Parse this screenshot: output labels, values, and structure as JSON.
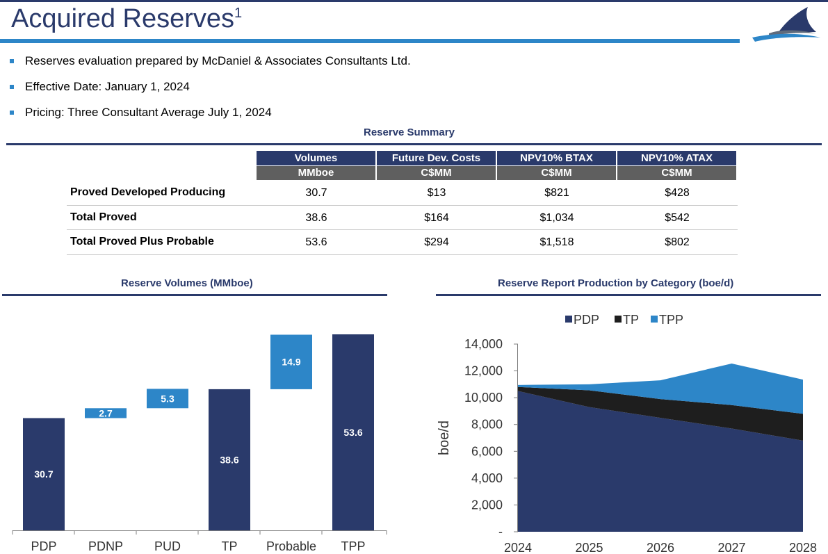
{
  "page": {
    "title": "Acquired Reserves",
    "title_sup": "1",
    "bullets": [
      "Reserves evaluation prepared by McDaniel & Associates Consultants Ltd.",
      "Effective Date: January 1, 2024",
      "Pricing: Three Consultant Average July 1, 2024"
    ]
  },
  "colors": {
    "navy": "#2a3a6b",
    "blue": "#2d86c8",
    "black": "#1e1e1e",
    "gray": "#5f5f5f"
  },
  "icons": {
    "logo": "shark-fin-wave-logo-icon",
    "bullet": "square-bullet-icon"
  },
  "table": {
    "title": "Reserve Summary",
    "columns": [
      {
        "header": "Volumes",
        "unit": "MMboe"
      },
      {
        "header": "Future Dev. Costs",
        "unit": "C$MM"
      },
      {
        "header": "NPV10% BTAX",
        "unit": "C$MM"
      },
      {
        "header": "NPV10% ATAX",
        "unit": "C$MM"
      }
    ],
    "rows": [
      {
        "label": "Proved Developed Producing",
        "values": [
          "30.7",
          "$13",
          "$821",
          "$428"
        ]
      },
      {
        "label": "Total Proved",
        "values": [
          "38.6",
          "$164",
          "$1,034",
          "$542"
        ]
      },
      {
        "label": "Total Proved Plus Probable",
        "values": [
          "53.6",
          "$294",
          "$1,518",
          "$802"
        ]
      }
    ]
  },
  "chart_data": [
    {
      "type": "bar",
      "subtype": "waterfall",
      "title": "Reserve Volumes (MMboe)",
      "categories": [
        "PDP",
        "PDNP",
        "PUD",
        "TP",
        "Probable",
        "TPP"
      ],
      "bars": [
        {
          "category": "PDP",
          "base": 0,
          "value": 30.7,
          "label": "30.7",
          "kind": "total"
        },
        {
          "category": "PDNP",
          "base": 30.7,
          "value": 2.7,
          "label": "2.7",
          "kind": "increment"
        },
        {
          "category": "PUD",
          "base": 33.4,
          "value": 5.3,
          "label": "5.3",
          "kind": "increment"
        },
        {
          "category": "TP",
          "base": 0,
          "value": 38.6,
          "label": "38.6",
          "kind": "total"
        },
        {
          "category": "Probable",
          "base": 38.6,
          "value": 14.9,
          "label": "14.9",
          "kind": "increment"
        },
        {
          "category": "TPP",
          "base": 0,
          "value": 53.6,
          "label": "53.6",
          "kind": "total"
        }
      ],
      "ylim": [
        0,
        53.6
      ],
      "grid": false,
      "legend": "none"
    },
    {
      "type": "area",
      "stacked": true,
      "title": "Reserve Report Production by Category (boe/d)",
      "x": [
        "2024",
        "2025",
        "2026",
        "2027",
        "2028"
      ],
      "series": [
        {
          "name": "PDP",
          "values": [
            10500,
            9300,
            8500,
            7700,
            6800
          ]
        },
        {
          "name": "TP",
          "values": [
            300,
            1250,
            1400,
            1750,
            2000
          ]
        },
        {
          "name": "TPP",
          "values": [
            150,
            450,
            1400,
            3100,
            2550
          ]
        }
      ],
      "ylabel": "boe/d",
      "yticks": [
        "-",
        "2,000",
        "4,000",
        "6,000",
        "8,000",
        "10,000",
        "12,000",
        "14,000"
      ],
      "ylim": [
        0,
        14000
      ],
      "grid": false,
      "legend": "top-center"
    }
  ]
}
